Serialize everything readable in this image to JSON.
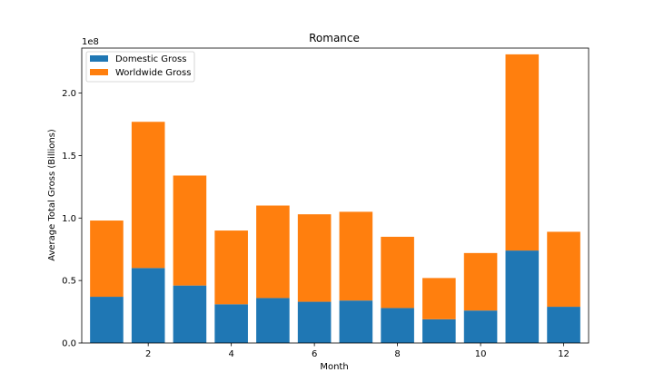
{
  "chart_data": {
    "type": "bar",
    "stacked": true,
    "title": "Romance",
    "xlabel": "Month",
    "ylabel": "Average Total Gross (Billions)",
    "y_offset_label": "1e8",
    "x": [
      1,
      2,
      3,
      4,
      5,
      6,
      7,
      8,
      9,
      10,
      11,
      12
    ],
    "xlim": [
      0.4,
      12.6
    ],
    "ylim": [
      0,
      2.36
    ],
    "xticks": [
      2,
      4,
      6,
      8,
      10,
      12
    ],
    "yticks": [
      0.0,
      0.5,
      1.0,
      1.5,
      2.0
    ],
    "ytick_labels": [
      "0.0",
      "0.5",
      "1.0",
      "1.5",
      "2.0"
    ],
    "grid": false,
    "legend_position": "upper-left",
    "series": [
      {
        "name": "Domestic Gross",
        "color": "#1f77b4",
        "values": [
          0.37,
          0.6,
          0.46,
          0.31,
          0.36,
          0.33,
          0.34,
          0.28,
          0.19,
          0.26,
          0.74,
          0.29
        ]
      },
      {
        "name": "Worldwide Gross",
        "color": "#ff7f0e",
        "values": [
          0.61,
          1.17,
          0.88,
          0.59,
          0.74,
          0.7,
          0.71,
          0.57,
          0.33,
          0.46,
          1.57,
          0.6
        ]
      }
    ]
  }
}
